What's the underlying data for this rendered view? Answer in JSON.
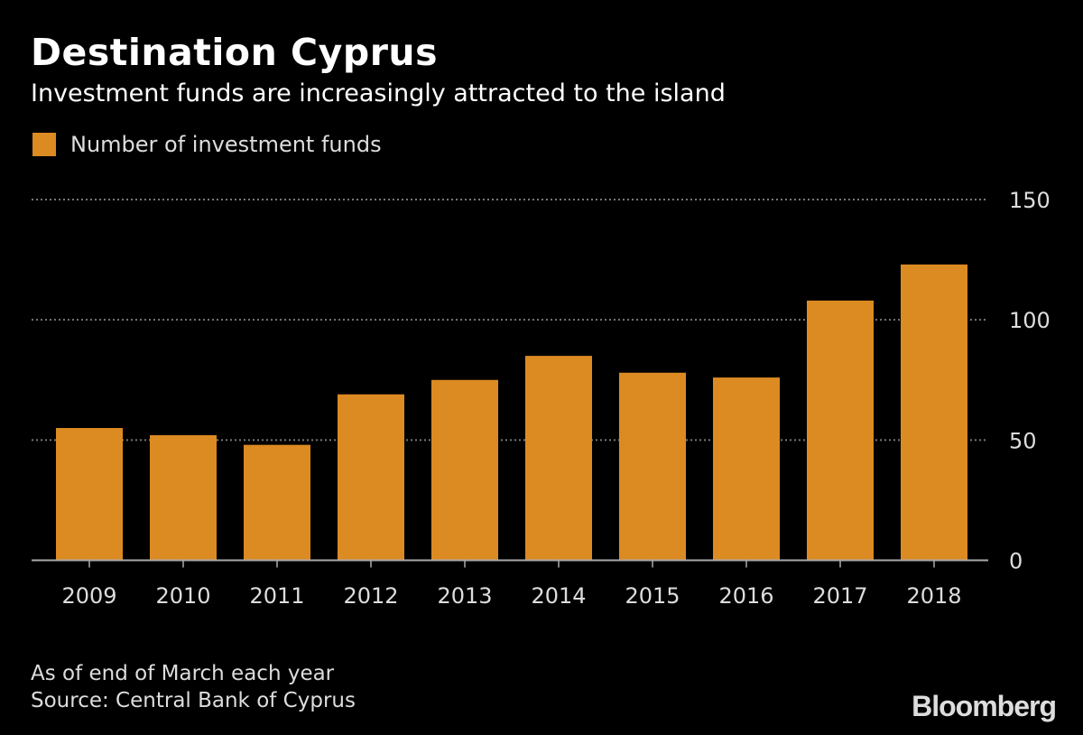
{
  "chart_data": {
    "type": "bar",
    "title": "Destination Cyprus",
    "subtitle": "Investment funds are increasingly attracted to the island",
    "categories": [
      "2009",
      "2010",
      "2011",
      "2012",
      "2013",
      "2014",
      "2015",
      "2016",
      "2017",
      "2018"
    ],
    "series": [
      {
        "name": "Number of investment funds",
        "values": [
          55,
          52,
          48,
          69,
          75,
          85,
          78,
          76,
          108,
          123
        ]
      }
    ],
    "ylim": [
      0,
      150
    ],
    "yticks": [
      0,
      50,
      100,
      150
    ],
    "yaxis_side": "right",
    "grid": true,
    "legend_placement": "top-left",
    "bar_color": "#DC8A22",
    "notes": [
      "As of end of March each year",
      "Source: Central Bank of Cyprus"
    ]
  },
  "branding": {
    "logo": "Bloomberg"
  }
}
